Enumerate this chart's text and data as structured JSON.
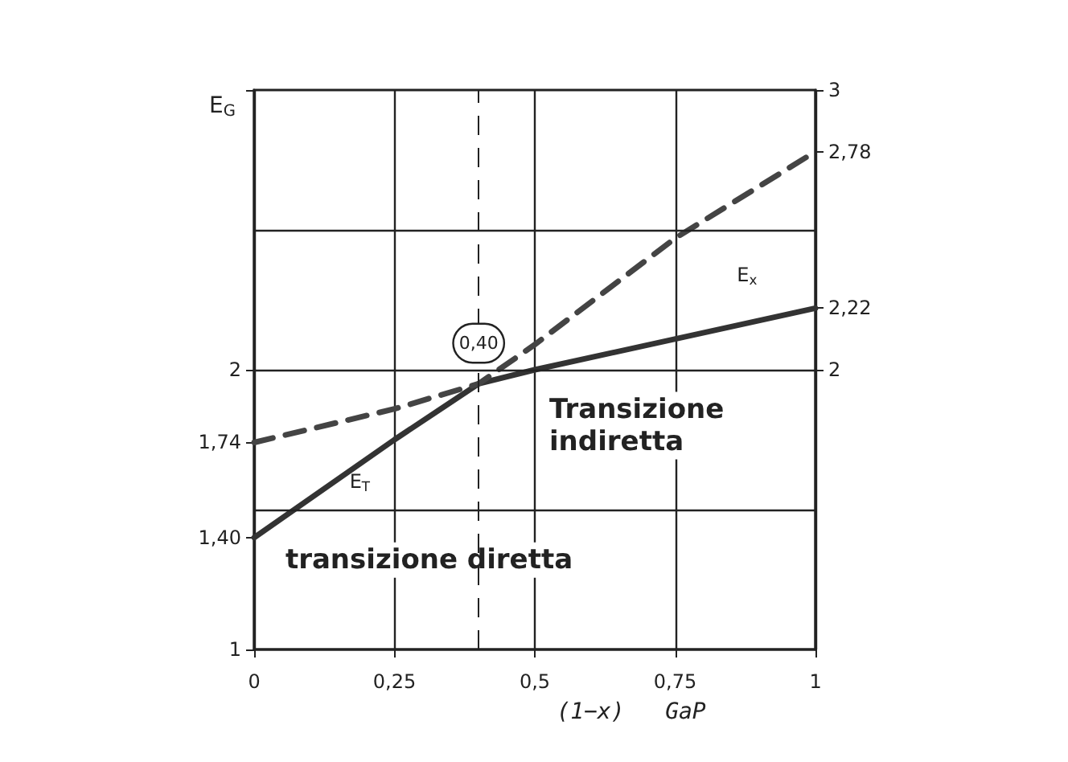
{
  "chart_data": {
    "type": "line",
    "xlabel": "(1−x)   GaP",
    "ylabel": "E$_{G}$",
    "xlim": [
      0,
      1
    ],
    "xticks": [
      0,
      {
        "value": 0.25,
        "label": "0,25"
      },
      {
        "value": 0.5,
        "label": "0,5"
      },
      {
        "value": 0.75,
        "label": "0,75"
      },
      1
    ],
    "ylim": [
      1,
      3
    ],
    "yticks": [
      1,
      {
        "value": 1.4,
        "label": "1,40"
      },
      {
        "value": 1.74,
        "label": "1,74"
      },
      2,
      {
        "value": 3,
        "label": null
      }
    ],
    "y2lim": [
      1,
      3
    ],
    "y2ticks": [
      2,
      {
        "value": 2.22,
        "label": "2,22"
      },
      {
        "value": 2.78,
        "label": "2,78"
      },
      3
    ],
    "grid": "x",
    "marker": "none",
    "series": [
      {
        "color": "#333333",
        "line_style": "solid",
        "x": [
          0,
          0.25,
          0.4,
          0.5,
          1
        ],
        "values": [
          1.4,
          1.75,
          1.95,
          2.0,
          2.22
        ]
      },
      {
        "color": "#444444",
        "line_style": "dashed",
        "x": [
          0,
          0.25,
          0.4,
          0.5,
          0.75,
          1
        ],
        "values": [
          1.74,
          1.86,
          1.95,
          2.09,
          2.47,
          2.78
        ]
      }
    ],
    "ref_lines": [
      {
        "axis": "x",
        "value": 0.4,
        "label": "0,40",
        "line_style": "dashed"
      },
      {
        "axis": "y",
        "value": 1.5,
        "line_style": "solid"
      },
      {
        "axis": "y",
        "value": 2,
        "line_style": "solid"
      },
      {
        "axis": "y",
        "value": 2.5,
        "line_style": "solid"
      }
    ],
    "annotations": [
      "E$_{T}$",
      "E$_{x}$",
      "Transizione\nindiretta",
      "transizione diretta"
    ]
  }
}
